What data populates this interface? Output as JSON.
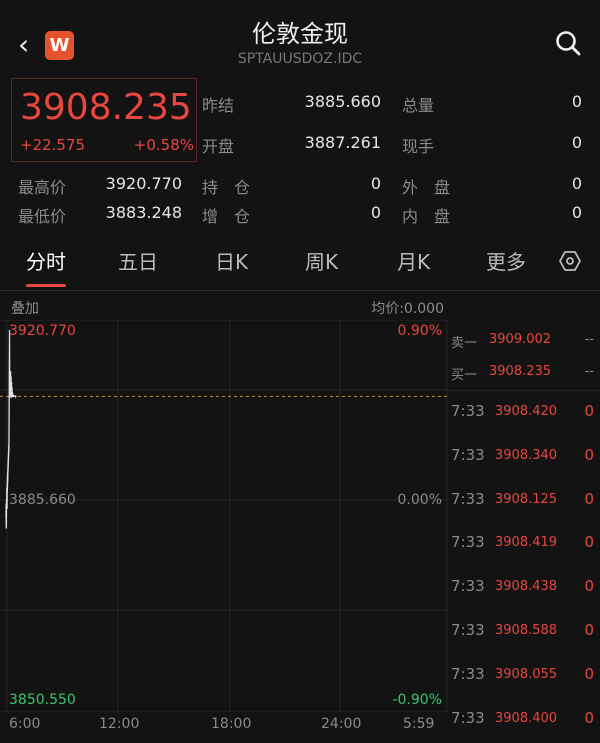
{
  "header": {
    "title": "伦敦金现",
    "code": "SPTAUUSDOZ.IDC",
    "back_icon": "chevron-left-icon",
    "logo_text": "W",
    "search_icon": "search-icon"
  },
  "quote": {
    "price": "3908.235",
    "change": "+22.575",
    "change_pct": "+0.58%",
    "stats": [
      {
        "label": "昨结",
        "value": "3885.660"
      },
      {
        "label": "总量",
        "value": "0"
      },
      {
        "label": "开盘",
        "value": "3887.261"
      },
      {
        "label": "现手",
        "value": "0"
      },
      {
        "label": "最高价",
        "value": "3920.770"
      },
      {
        "label": "持　仓",
        "value": "0"
      },
      {
        "label": "外　盘",
        "value": "0"
      },
      {
        "label": "最低价",
        "value": "3883.248"
      },
      {
        "label": "增　仓",
        "value": "0"
      },
      {
        "label": "内　盘",
        "value": "0"
      }
    ]
  },
  "tabs": [
    "分时",
    "五日",
    "日K",
    "周K",
    "月K",
    "更多"
  ],
  "settings_icon": "hexagon-settings-icon",
  "chart": {
    "overlay_label": "叠加",
    "avg_label": "均价:0.000",
    "high": "3920.770",
    "mid": "3885.660",
    "low": "3850.550",
    "pct_high": "0.90%",
    "pct_mid": "0.00%",
    "pct_low": "-0.90%",
    "x_ticks": [
      "6:00",
      "12:00",
      "18:00",
      "24:00",
      "5:59"
    ],
    "ymin": 3850.55,
    "ymax": 3920.77,
    "last": 3908.235,
    "minutes": [
      0,
      1,
      2,
      3,
      4,
      5,
      6,
      7,
      8,
      9,
      10,
      11,
      12,
      13,
      14,
      15,
      16,
      17,
      18,
      19,
      20,
      21,
      22,
      23,
      24,
      25,
      26,
      27,
      28,
      29,
      30,
      31,
      32,
      33,
      34,
      35,
      36,
      37,
      38,
      39,
      40,
      41,
      42,
      43,
      44,
      45,
      46,
      47,
      48,
      49,
      50,
      51,
      52,
      53,
      54,
      55,
      56,
      57,
      58,
      59,
      60,
      61,
      62,
      63,
      64,
      65,
      66,
      67,
      68,
      69,
      70,
      71,
      72,
      73,
      74,
      75,
      76,
      77,
      78,
      79,
      80,
      81,
      82,
      83,
      84,
      85,
      86,
      87,
      88,
      89,
      90,
      91,
      92,
      93
    ],
    "prices": [
      3885.2,
      3888,
      3884,
      3883.3,
      3886,
      3889,
      3887,
      3891,
      3888,
      3890,
      3887,
      3892,
      3890,
      3893,
      3891,
      3894,
      3892,
      3893,
      3895,
      3894,
      3896,
      3895,
      3897,
      3896,
      3898,
      3897,
      3899,
      3898,
      3900,
      3904,
      3909,
      3914,
      3917,
      3920.77,
      3915,
      3912,
      3910,
      3913,
      3911,
      3909,
      3912,
      3908,
      3910,
      3913,
      3911,
      3909,
      3908,
      3910,
      3912,
      3909,
      3908.5,
      3910,
      3911,
      3909,
      3908,
      3909.5,
      3910,
      3908.5,
      3909,
      3908.4,
      3908.5,
      3909,
      3908.3,
      3908.2,
      3908.6,
      3908.3,
      3908.1,
      3908.4,
      3908.2,
      3908.3,
      3908.5,
      3908.2,
      3908.4,
      3908.3,
      3908.2,
      3908.4,
      3908.3,
      3908.2,
      3908.3,
      3908.4,
      3908.3,
      3908.2,
      3908.3,
      3908.4,
      3908.3,
      3908.2,
      3908.3,
      3908.4,
      3908.3,
      3908.2,
      3908.3,
      3908.4,
      3908.2,
      3908.235
    ],
    "total_minutes": 1439
  },
  "orderbook": {
    "asks": [
      {
        "label": "卖一",
        "price": "3909.002",
        "vol": "--"
      }
    ],
    "bids": [
      {
        "label": "买一",
        "price": "3908.235",
        "vol": "--"
      }
    ],
    "trades": [
      {
        "time": "7:33",
        "price": "3908.420",
        "vol": "0"
      },
      {
        "time": "7:33",
        "price": "3908.340",
        "vol": "0"
      },
      {
        "time": "7:33",
        "price": "3908.125",
        "vol": "0"
      },
      {
        "time": "7:33",
        "price": "3908.419",
        "vol": "0"
      },
      {
        "time": "7:33",
        "price": "3908.438",
        "vol": "0"
      },
      {
        "time": "7:33",
        "price": "3908.588",
        "vol": "0"
      },
      {
        "time": "7:33",
        "price": "3908.055",
        "vol": "0"
      },
      {
        "time": "7:33",
        "price": "3908.400",
        "vol": "0"
      }
    ]
  },
  "colors": {
    "up": "#e8473f",
    "down": "#3ec46d",
    "background": "#131313",
    "line": "#e0e0e0",
    "dashed": "#c9913a"
  }
}
